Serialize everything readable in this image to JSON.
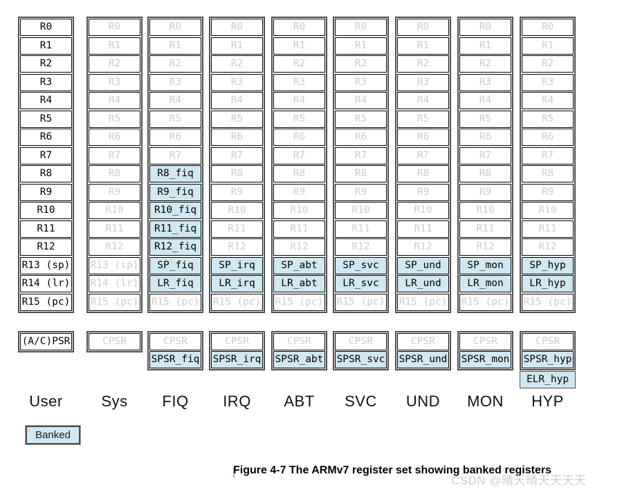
{
  "figure": {
    "caption": "Figure 4-7 The ARMv7 register set showing banked registers",
    "watermark": "CSDN @晴天晴天天天天"
  },
  "legend": {
    "label": "Banked"
  },
  "colors": {
    "banked_fill": "#d0e8f1",
    "inactive_text": "#c9cdd0",
    "cell_border": "#000000",
    "outer_border": "#4d4d4d"
  },
  "columns": [
    {
      "mode": "User",
      "registers": [
        {
          "label": "R0",
          "state": "active"
        },
        {
          "label": "R1",
          "state": "active"
        },
        {
          "label": "R2",
          "state": "active"
        },
        {
          "label": "R3",
          "state": "active"
        },
        {
          "label": "R4",
          "state": "active"
        },
        {
          "label": "R5",
          "state": "active"
        },
        {
          "label": "R6",
          "state": "active"
        },
        {
          "label": "R7",
          "state": "active"
        },
        {
          "label": "R8",
          "state": "active"
        },
        {
          "label": "R9",
          "state": "active"
        },
        {
          "label": "R10",
          "state": "active"
        },
        {
          "label": "R11",
          "state": "active"
        },
        {
          "label": "R12",
          "state": "active"
        },
        {
          "label": "R13 (sp)",
          "state": "active"
        },
        {
          "label": "R14 (lr)",
          "state": "active"
        },
        {
          "label": "R15 (pc)",
          "state": "active"
        }
      ],
      "psr": [
        {
          "label": "(A/C)PSR",
          "state": "active"
        }
      ]
    },
    {
      "mode": "Sys",
      "registers": [
        {
          "label": "R0",
          "state": "inactive"
        },
        {
          "label": "R1",
          "state": "inactive"
        },
        {
          "label": "R2",
          "state": "inactive"
        },
        {
          "label": "R3",
          "state": "inactive"
        },
        {
          "label": "R4",
          "state": "inactive"
        },
        {
          "label": "R5",
          "state": "inactive"
        },
        {
          "label": "R6",
          "state": "inactive"
        },
        {
          "label": "R7",
          "state": "inactive"
        },
        {
          "label": "R8",
          "state": "inactive"
        },
        {
          "label": "R9",
          "state": "inactive"
        },
        {
          "label": "R10",
          "state": "inactive"
        },
        {
          "label": "R11",
          "state": "inactive"
        },
        {
          "label": "R12",
          "state": "inactive"
        },
        {
          "label": "R13 (sp)",
          "state": "inactive"
        },
        {
          "label": "R14 (lr)",
          "state": "inactive"
        },
        {
          "label": "R15 (pc)",
          "state": "inactive"
        }
      ],
      "psr": [
        {
          "label": "CPSR",
          "state": "inactive"
        }
      ]
    },
    {
      "mode": "FIQ",
      "registers": [
        {
          "label": "R0",
          "state": "inactive"
        },
        {
          "label": "R1",
          "state": "inactive"
        },
        {
          "label": "R2",
          "state": "inactive"
        },
        {
          "label": "R3",
          "state": "inactive"
        },
        {
          "label": "R4",
          "state": "inactive"
        },
        {
          "label": "R5",
          "state": "inactive"
        },
        {
          "label": "R6",
          "state": "inactive"
        },
        {
          "label": "R7",
          "state": "inactive"
        },
        {
          "label": "R8_fiq",
          "state": "banked"
        },
        {
          "label": "R9_fiq",
          "state": "banked"
        },
        {
          "label": "R10_fiq",
          "state": "banked"
        },
        {
          "label": "R11_fiq",
          "state": "banked"
        },
        {
          "label": "R12_fiq",
          "state": "banked"
        },
        {
          "label": "SP_fiq",
          "state": "banked"
        },
        {
          "label": "LR_fiq",
          "state": "banked"
        },
        {
          "label": "R15 (pc)",
          "state": "inactive"
        }
      ],
      "psr": [
        {
          "label": "CPSR",
          "state": "inactive"
        },
        {
          "label": "SPSR_fiq",
          "state": "banked"
        }
      ]
    },
    {
      "mode": "IRQ",
      "registers": [
        {
          "label": "R0",
          "state": "inactive"
        },
        {
          "label": "R1",
          "state": "inactive"
        },
        {
          "label": "R2",
          "state": "inactive"
        },
        {
          "label": "R3",
          "state": "inactive"
        },
        {
          "label": "R4",
          "state": "inactive"
        },
        {
          "label": "R5",
          "state": "inactive"
        },
        {
          "label": "R6",
          "state": "inactive"
        },
        {
          "label": "R7",
          "state": "inactive"
        },
        {
          "label": "R8",
          "state": "inactive"
        },
        {
          "label": "R9",
          "state": "inactive"
        },
        {
          "label": "R10",
          "state": "inactive"
        },
        {
          "label": "R11",
          "state": "inactive"
        },
        {
          "label": "R12",
          "state": "inactive"
        },
        {
          "label": "SP_irq",
          "state": "banked"
        },
        {
          "label": "LR_irq",
          "state": "banked"
        },
        {
          "label": "R15 (pc)",
          "state": "inactive"
        }
      ],
      "psr": [
        {
          "label": "CPSR",
          "state": "inactive"
        },
        {
          "label": "SPSR_irq",
          "state": "banked"
        }
      ]
    },
    {
      "mode": "ABT",
      "registers": [
        {
          "label": "R0",
          "state": "inactive"
        },
        {
          "label": "R1",
          "state": "inactive"
        },
        {
          "label": "R2",
          "state": "inactive"
        },
        {
          "label": "R3",
          "state": "inactive"
        },
        {
          "label": "R4",
          "state": "inactive"
        },
        {
          "label": "R5",
          "state": "inactive"
        },
        {
          "label": "R6",
          "state": "inactive"
        },
        {
          "label": "R7",
          "state": "inactive"
        },
        {
          "label": "R8",
          "state": "inactive"
        },
        {
          "label": "R9",
          "state": "inactive"
        },
        {
          "label": "R10",
          "state": "inactive"
        },
        {
          "label": "R11",
          "state": "inactive"
        },
        {
          "label": "R12",
          "state": "inactive"
        },
        {
          "label": "SP_abt",
          "state": "banked"
        },
        {
          "label": "LR_abt",
          "state": "banked"
        },
        {
          "label": "R15 (pc)",
          "state": "inactive"
        }
      ],
      "psr": [
        {
          "label": "CPSR",
          "state": "inactive"
        },
        {
          "label": "SPSR_abt",
          "state": "banked"
        }
      ]
    },
    {
      "mode": "SVC",
      "registers": [
        {
          "label": "R0",
          "state": "inactive"
        },
        {
          "label": "R1",
          "state": "inactive"
        },
        {
          "label": "R2",
          "state": "inactive"
        },
        {
          "label": "R3",
          "state": "inactive"
        },
        {
          "label": "R4",
          "state": "inactive"
        },
        {
          "label": "R5",
          "state": "inactive"
        },
        {
          "label": "R6",
          "state": "inactive"
        },
        {
          "label": "R7",
          "state": "inactive"
        },
        {
          "label": "R8",
          "state": "inactive"
        },
        {
          "label": "R9",
          "state": "inactive"
        },
        {
          "label": "R10",
          "state": "inactive"
        },
        {
          "label": "R11",
          "state": "inactive"
        },
        {
          "label": "R12",
          "state": "inactive"
        },
        {
          "label": "SP_svc",
          "state": "banked"
        },
        {
          "label": "LR_svc",
          "state": "banked"
        },
        {
          "label": "R15 (pc)",
          "state": "inactive"
        }
      ],
      "psr": [
        {
          "label": "CPSR",
          "state": "inactive"
        },
        {
          "label": "SPSR_svc",
          "state": "banked"
        }
      ]
    },
    {
      "mode": "UND",
      "registers": [
        {
          "label": "R0",
          "state": "inactive"
        },
        {
          "label": "R1",
          "state": "inactive"
        },
        {
          "label": "R2",
          "state": "inactive"
        },
        {
          "label": "R3",
          "state": "inactive"
        },
        {
          "label": "R4",
          "state": "inactive"
        },
        {
          "label": "R5",
          "state": "inactive"
        },
        {
          "label": "R6",
          "state": "inactive"
        },
        {
          "label": "R7",
          "state": "inactive"
        },
        {
          "label": "R8",
          "state": "inactive"
        },
        {
          "label": "R9",
          "state": "inactive"
        },
        {
          "label": "R10",
          "state": "inactive"
        },
        {
          "label": "R11",
          "state": "inactive"
        },
        {
          "label": "R12",
          "state": "inactive"
        },
        {
          "label": "SP_und",
          "state": "banked"
        },
        {
          "label": "LR_und",
          "state": "banked"
        },
        {
          "label": "R15 (pc)",
          "state": "inactive"
        }
      ],
      "psr": [
        {
          "label": "CPSR",
          "state": "inactive"
        },
        {
          "label": "SPSR_und",
          "state": "banked"
        }
      ]
    },
    {
      "mode": "MON",
      "registers": [
        {
          "label": "R0",
          "state": "inactive"
        },
        {
          "label": "R1",
          "state": "inactive"
        },
        {
          "label": "R2",
          "state": "inactive"
        },
        {
          "label": "R3",
          "state": "inactive"
        },
        {
          "label": "R4",
          "state": "inactive"
        },
        {
          "label": "R5",
          "state": "inactive"
        },
        {
          "label": "R6",
          "state": "inactive"
        },
        {
          "label": "R7",
          "state": "inactive"
        },
        {
          "label": "R8",
          "state": "inactive"
        },
        {
          "label": "R9",
          "state": "inactive"
        },
        {
          "label": "R10",
          "state": "inactive"
        },
        {
          "label": "R11",
          "state": "inactive"
        },
        {
          "label": "R12",
          "state": "inactive"
        },
        {
          "label": "SP_mon",
          "state": "banked"
        },
        {
          "label": "LR_mon",
          "state": "banked"
        },
        {
          "label": "R15 (pc)",
          "state": "inactive"
        }
      ],
      "psr": [
        {
          "label": "CPSR",
          "state": "inactive"
        },
        {
          "label": "SPSR_mon",
          "state": "banked"
        }
      ]
    },
    {
      "mode": "HYP",
      "registers": [
        {
          "label": "R0",
          "state": "inactive"
        },
        {
          "label": "R1",
          "state": "inactive"
        },
        {
          "label": "R2",
          "state": "inactive"
        },
        {
          "label": "R3",
          "state": "inactive"
        },
        {
          "label": "R4",
          "state": "inactive"
        },
        {
          "label": "R5",
          "state": "inactive"
        },
        {
          "label": "R6",
          "state": "inactive"
        },
        {
          "label": "R7",
          "state": "inactive"
        },
        {
          "label": "R8",
          "state": "inactive"
        },
        {
          "label": "R9",
          "state": "inactive"
        },
        {
          "label": "R10",
          "state": "inactive"
        },
        {
          "label": "R11",
          "state": "inactive"
        },
        {
          "label": "R12",
          "state": "inactive"
        },
        {
          "label": "SP_hyp",
          "state": "banked"
        },
        {
          "label": "LR_hyp",
          "state": "banked"
        },
        {
          "label": "R15 (pc)",
          "state": "inactive"
        }
      ],
      "psr": [
        {
          "label": "CPSR",
          "state": "inactive"
        },
        {
          "label": "SPSR_hyp",
          "state": "banked"
        }
      ],
      "psr_extra": {
        "label": "ELR_hyp",
        "state": "banked"
      }
    }
  ]
}
